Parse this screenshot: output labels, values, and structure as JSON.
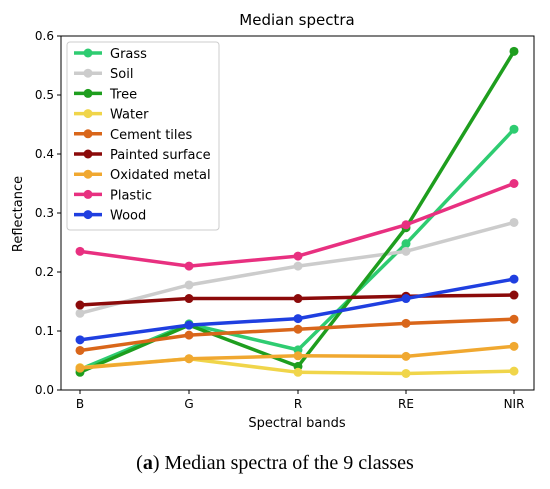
{
  "caption": {
    "label": "a",
    "text": " Median spectra of the 9 classes"
  },
  "chart_data": {
    "type": "line",
    "title": "Median spectra",
    "xlabel": "Spectral bands",
    "ylabel": "Reflectance",
    "categories": [
      "B",
      "G",
      "R",
      "RE",
      "NIR"
    ],
    "ylim": [
      0,
      0.6
    ],
    "yticks": [
      "0.0",
      "0.1",
      "0.2",
      "0.3",
      "0.4",
      "0.5",
      "0.6"
    ],
    "grid": false,
    "legend_position": "top-left",
    "series": [
      {
        "name": "Grass",
        "color": "#2ecc71",
        "values": [
          0.035,
          0.112,
          0.068,
          0.248,
          0.442
        ]
      },
      {
        "name": "Soil",
        "color": "#cccccc",
        "values": [
          0.13,
          0.178,
          0.21,
          0.235,
          0.284
        ]
      },
      {
        "name": "Tree",
        "color": "#1e9e1e",
        "values": [
          0.03,
          0.11,
          0.04,
          0.275,
          0.574
        ]
      },
      {
        "name": "Water",
        "color": "#f0d54a",
        "values": [
          0.038,
          0.053,
          0.03,
          0.028,
          0.032
        ]
      },
      {
        "name": "Cement tiles",
        "color": "#d9661a",
        "values": [
          0.067,
          0.093,
          0.103,
          0.113,
          0.12
        ]
      },
      {
        "name": "Painted surface",
        "color": "#8b0a0a",
        "values": [
          0.144,
          0.155,
          0.155,
          0.159,
          0.161
        ]
      },
      {
        "name": "Oxidated metal",
        "color": "#f0a830",
        "values": [
          0.037,
          0.053,
          0.058,
          0.057,
          0.074
        ]
      },
      {
        "name": "Plastic",
        "color": "#e83080",
        "values": [
          0.235,
          0.21,
          0.227,
          0.28,
          0.35
        ]
      },
      {
        "name": "Wood",
        "color": "#1f3fe0",
        "values": [
          0.085,
          0.11,
          0.121,
          0.155,
          0.188
        ]
      }
    ]
  }
}
